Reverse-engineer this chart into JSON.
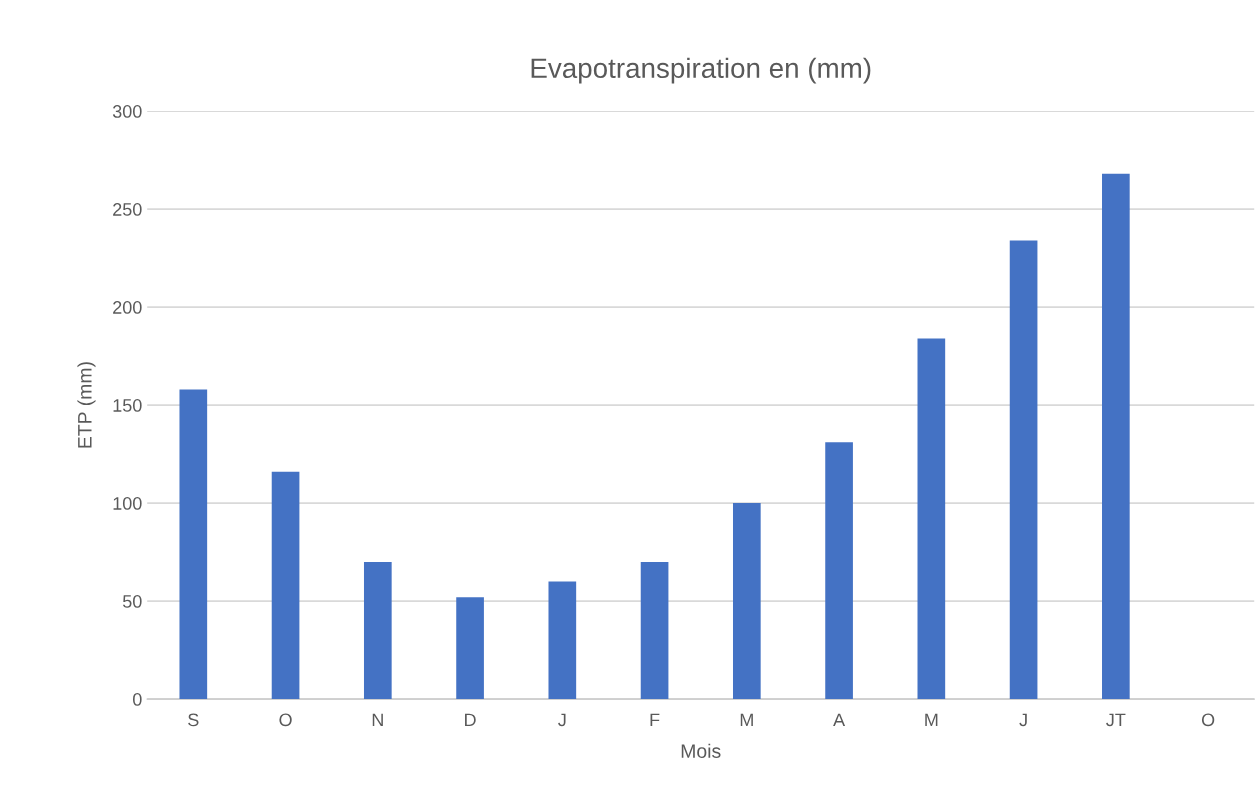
{
  "chart_data": {
    "type": "bar",
    "title": "Evapotranspiration en (mm)",
    "xlabel": "Mois",
    "ylabel": "ETP (mm)",
    "categories": [
      "S",
      "O",
      "N",
      "D",
      "J",
      "F",
      "M",
      "A",
      "M",
      "J",
      "JT",
      "O"
    ],
    "values": [
      158,
      116,
      70,
      52,
      60,
      70,
      100,
      131,
      184,
      234,
      268,
      null
    ],
    "color": "#4472c4",
    "ylim": [
      0,
      300
    ],
    "yticks": [
      0,
      50,
      100,
      150,
      200,
      250,
      300
    ],
    "grid": "y"
  }
}
